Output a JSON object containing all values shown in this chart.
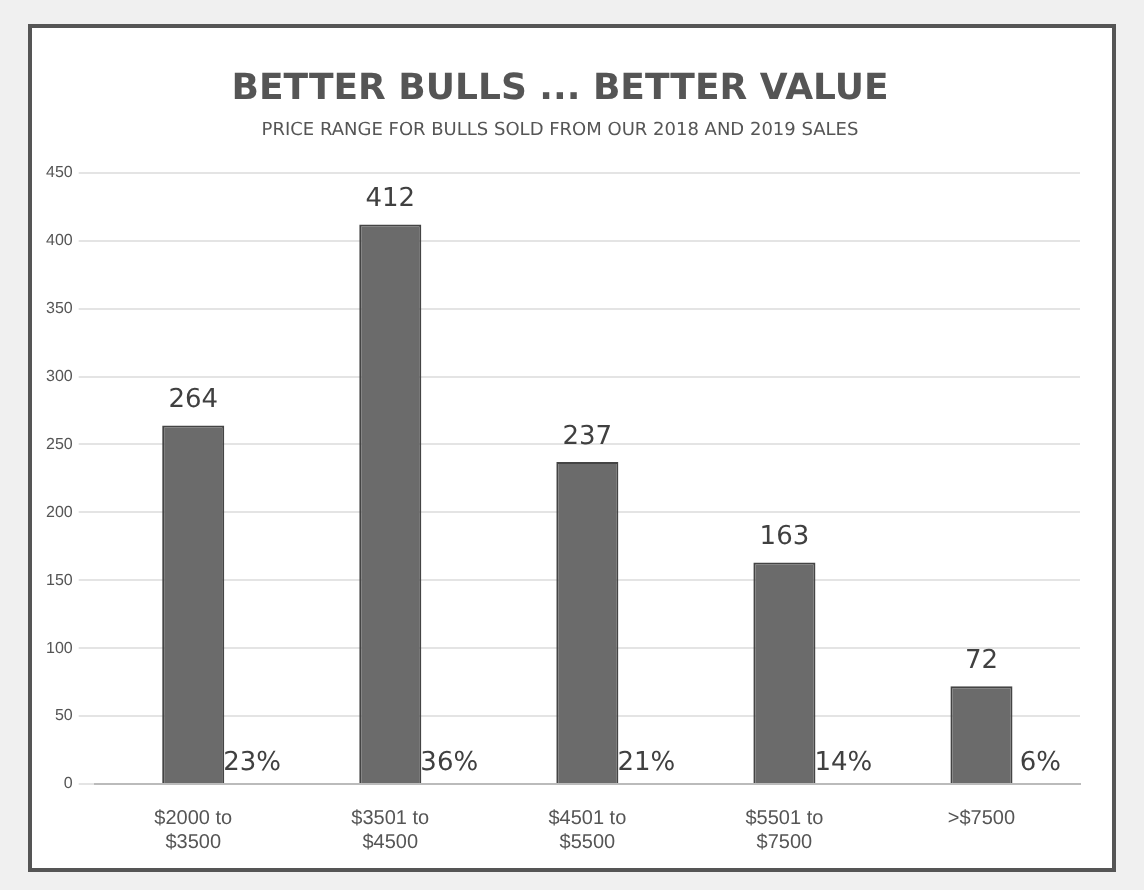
{
  "chart_data": {
    "type": "bar",
    "title": "BETTER BULLS ... BETTER VALUE",
    "subtitle": "PRICE RANGE FOR BULLS SOLD FROM OUR 2018 AND 2019 SALES",
    "categories": [
      "$2000 to $3500",
      "$3501 to $4500",
      "$4501 to $5500",
      "$5501 to $7500",
      ">$7500"
    ],
    "values": [
      264,
      412,
      237,
      163,
      72
    ],
    "color": "#6b6b6b",
    "data_labels": true,
    "ylim": [
      0,
      450
    ],
    "yticks": [
      0,
      50,
      100,
      150,
      200,
      250,
      300,
      350,
      400,
      450
    ],
    "grid": "y",
    "annotations": [
      {
        "text": "23%",
        "x": "$2000 to $3500",
        "y": 0
      },
      {
        "text": "36%",
        "x": "$3501 to $4500",
        "y": 0
      },
      {
        "text": "21%",
        "x": "$4501 to $5500",
        "y": 0
      },
      {
        "text": "14%",
        "x": "$5501 to $7500",
        "y": 0
      },
      {
        "text": "6%",
        "x": ">$7500",
        "y": 0
      }
    ]
  }
}
